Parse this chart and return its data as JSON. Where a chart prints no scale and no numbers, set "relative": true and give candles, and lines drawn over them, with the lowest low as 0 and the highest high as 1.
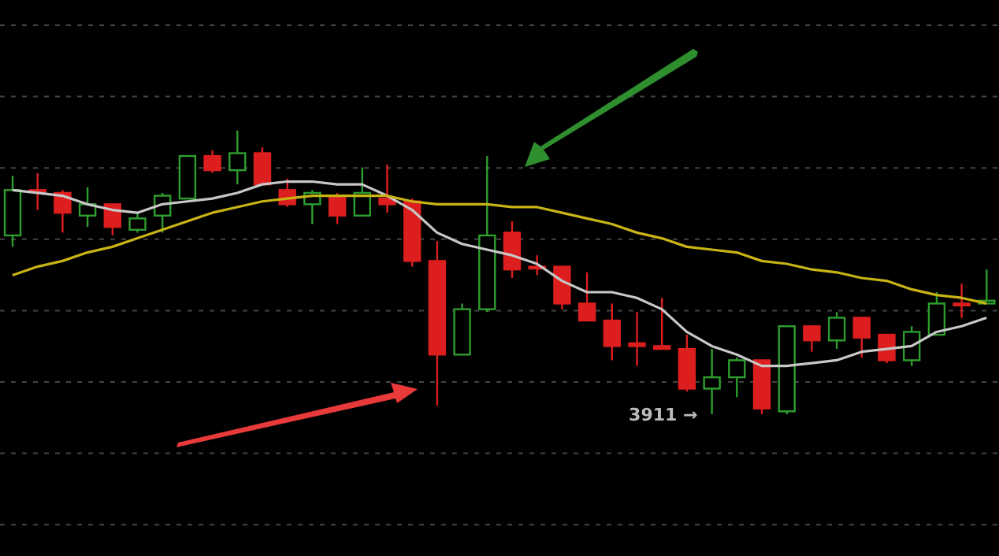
{
  "chart_data": {
    "type": "candlestick",
    "relative": true,
    "grid": true,
    "categories": [
      null,
      null,
      null,
      null,
      null,
      null,
      null,
      null,
      null,
      null,
      null,
      null,
      null,
      null,
      null,
      null,
      null,
      null,
      null,
      null,
      null,
      null,
      null,
      null,
      null,
      null,
      null,
      null,
      null,
      null,
      null,
      null,
      null,
      null,
      null,
      null,
      null,
      null,
      null,
      null
    ],
    "ohlc": [
      [
        0.63,
        0.84,
        0.59,
        0.79
      ],
      [
        0.79,
        0.85,
        0.72,
        0.79
      ],
      [
        0.78,
        0.79,
        0.64,
        0.71
      ],
      [
        0.7,
        0.8,
        0.66,
        0.74
      ],
      [
        0.74,
        0.74,
        0.63,
        0.66
      ],
      [
        0.65,
        0.71,
        0.64,
        0.69
      ],
      [
        0.7,
        0.78,
        0.64,
        0.77
      ],
      [
        0.76,
        0.91,
        0.76,
        0.91
      ],
      [
        0.91,
        0.93,
        0.85,
        0.86
      ],
      [
        0.86,
        1.0,
        0.81,
        0.92
      ],
      [
        0.92,
        0.94,
        0.81,
        0.81
      ],
      [
        0.79,
        0.83,
        0.73,
        0.74
      ],
      [
        0.74,
        0.79,
        0.67,
        0.78
      ],
      [
        0.77,
        0.78,
        0.67,
        0.7
      ],
      [
        0.7,
        0.87,
        0.7,
        0.78
      ],
      [
        0.76,
        0.88,
        0.71,
        0.74
      ],
      [
        0.75,
        0.76,
        0.52,
        0.54
      ],
      [
        0.54,
        0.61,
        0.03,
        0.21
      ],
      [
        0.21,
        0.39,
        0.21,
        0.37
      ],
      [
        0.37,
        0.91,
        0.36,
        0.63
      ],
      [
        0.64,
        0.68,
        0.48,
        0.51
      ],
      [
        0.52,
        0.56,
        0.49,
        0.52
      ],
      [
        0.52,
        0.52,
        0.37,
        0.39
      ],
      [
        0.39,
        0.5,
        0.33,
        0.33
      ],
      [
        0.33,
        0.39,
        0.19,
        0.24
      ],
      [
        0.25,
        0.36,
        0.17,
        0.24
      ],
      [
        0.24,
        0.41,
        0.23,
        0.23
      ],
      [
        0.23,
        0.28,
        0.08,
        0.09
      ],
      [
        0.09,
        0.23,
        0,
        0.13
      ],
      [
        0.13,
        0.2,
        0.06,
        0.19
      ],
      [
        0.19,
        0.19,
        0,
        0.02
      ],
      [
        0.01,
        0.31,
        0,
        0.31
      ],
      [
        0.31,
        0.31,
        0.22,
        0.26
      ],
      [
        0.26,
        0.36,
        0.23,
        0.34
      ],
      [
        0.34,
        0.34,
        0.2,
        0.27
      ],
      [
        0.28,
        0.28,
        0.18,
        0.19
      ],
      [
        0.19,
        0.31,
        0.17,
        0.29
      ],
      [
        0.28,
        0.43,
        0.28,
        0.39
      ],
      [
        0.39,
        0.46,
        0.34,
        0.39
      ],
      [
        0.39,
        0.51,
        0.39,
        0.4
      ]
    ],
    "colors": [
      "#2e9e2e",
      "#dd1e1e",
      "#dd1e1e",
      "#2e9e2e",
      "#dd1e1e",
      "#2e9e2e",
      "#2e9e2e",
      "#2e9e2e",
      "#dd1e1e",
      "#2e9e2e",
      "#dd1e1e",
      "#dd1e1e",
      "#2e9e2e",
      "#dd1e1e",
      "#2e9e2e",
      "#dd1e1e",
      "#dd1e1e",
      "#dd1e1e",
      "#2e9e2e",
      "#2e9e2e",
      "#dd1e1e",
      "#dd1e1e",
      "#dd1e1e",
      "#dd1e1e",
      "#dd1e1e",
      "#dd1e1e",
      "#dd1e1e",
      "#dd1e1e",
      "#2e9e2e",
      "#2e9e2e",
      "#dd1e1e",
      "#2e9e2e",
      "#dd1e1e",
      "#2e9e2e",
      "#dd1e1e",
      "#dd1e1e",
      "#2e9e2e",
      "#2e9e2e",
      "#dd1e1e",
      "#2e9e2e"
    ],
    "series": [
      {
        "type": "line",
        "color": "#c8c8c8",
        "values": [
          0.79,
          0.78,
          0.77,
          0.74,
          0.72,
          0.71,
          0.74,
          0.75,
          0.76,
          0.78,
          0.81,
          0.82,
          0.82,
          0.81,
          0.81,
          0.77,
          0.72,
          0.64,
          0.6,
          0.58,
          0.56,
          0.53,
          0.47,
          0.43,
          0.43,
          0.41,
          0.37,
          0.29,
          0.24,
          0.21,
          0.17,
          0.17,
          0.18,
          0.19,
          0.22,
          0.23,
          0.24,
          0.29,
          0.31,
          0.34
        ]
      },
      {
        "type": "line",
        "color": "#c8b414",
        "values": [
          0.49,
          0.52,
          0.54,
          0.57,
          0.59,
          0.62,
          0.65,
          0.68,
          0.71,
          0.73,
          0.75,
          0.76,
          0.77,
          0.77,
          0.77,
          0.77,
          0.75,
          0.74,
          0.74,
          0.74,
          0.73,
          0.73,
          0.71,
          0.69,
          0.67,
          0.64,
          0.62,
          0.59,
          0.58,
          0.57,
          0.54,
          0.53,
          0.51,
          0.5,
          0.48,
          0.47,
          0.44,
          0.42,
          0.41,
          0.39
        ]
      }
    ],
    "annotations": [
      "3911 →"
    ]
  }
}
